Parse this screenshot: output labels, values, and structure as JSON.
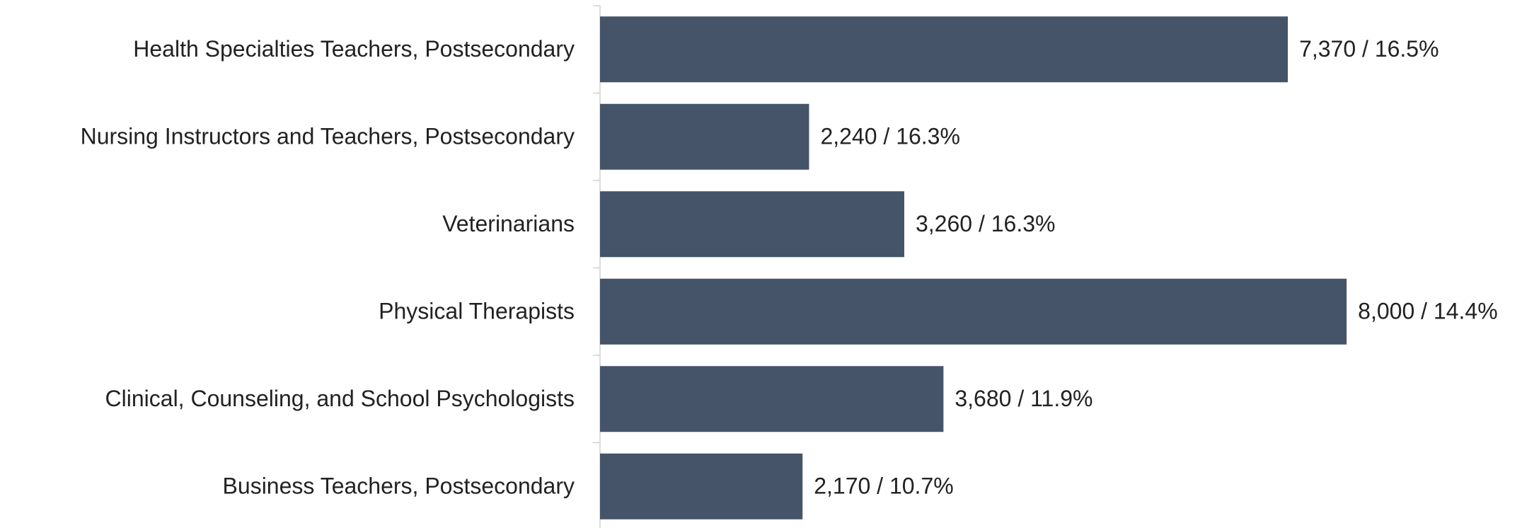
{
  "chart_data": {
    "type": "hbar",
    "categories": [
      "Health Specialties Teachers, Postsecondary",
      "Nursing Instructors and Teachers, Postsecondary",
      "Veterinarians",
      "Physical Therapists",
      "Clinical, Counseling, and School Psychologists",
      "Business Teachers, Postsecondary"
    ],
    "values": [
      7370,
      2240,
      3260,
      8000,
      3680,
      2170
    ],
    "value_labels": [
      "7,370 / 16.5%",
      "2,240 / 16.3%",
      "3,260 / 16.3%",
      "8,000 / 14.4%",
      "3,680 / 11.9%",
      "2,170 / 10.7%"
    ],
    "color": "#455469",
    "xlim": [
      0,
      9500
    ]
  }
}
